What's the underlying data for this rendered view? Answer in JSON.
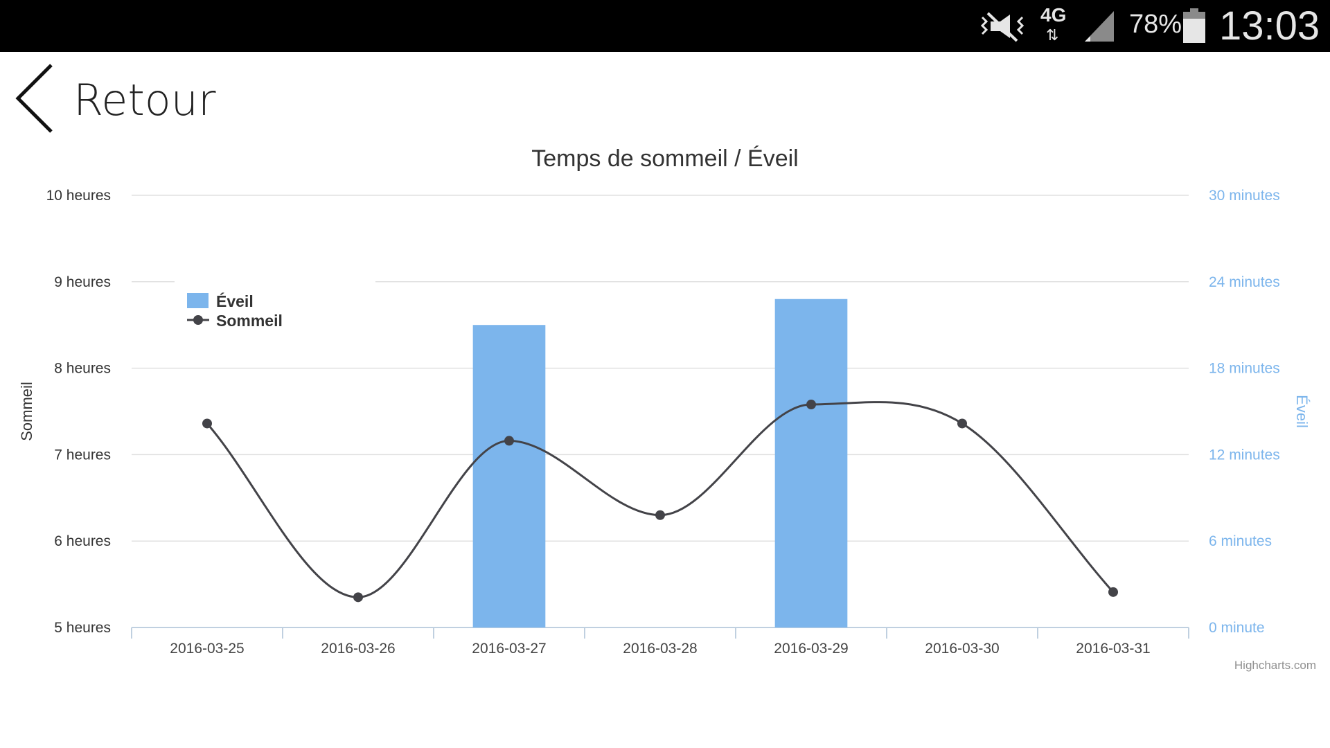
{
  "status_bar": {
    "network": "4G",
    "battery_percent": "78%",
    "clock": "13:03",
    "icons": [
      "mute-vibrate-icon",
      "network-arrows-icon",
      "signal-icon",
      "battery-icon"
    ]
  },
  "nav": {
    "back_label": "Retour",
    "icon": "chevron-left-icon"
  },
  "chart_data": {
    "type": "bar+line",
    "title": "Temps de sommeil / Éveil",
    "categories": [
      "2016-03-25",
      "2016-03-26",
      "2016-03-27",
      "2016-03-28",
      "2016-03-29",
      "2016-03-30",
      "2016-03-31"
    ],
    "left_axis": {
      "title": "Sommeil",
      "ticks": [
        "5 heures",
        "6 heures",
        "7 heures",
        "8 heures",
        "9 heures",
        "10 heures"
      ],
      "range": [
        5,
        10
      ]
    },
    "right_axis": {
      "title": "Éveil",
      "ticks": [
        "0 minute",
        "6 minutes",
        "12 minutes",
        "18 minutes",
        "24 minutes",
        "30 minutes"
      ],
      "range": [
        0,
        30
      ]
    },
    "series": [
      {
        "name": "Éveil",
        "type": "column",
        "axis": "right",
        "color": "#7cb5ec",
        "values": [
          0,
          0,
          21,
          0,
          22.8,
          0,
          0
        ]
      },
      {
        "name": "Sommeil",
        "type": "spline",
        "axis": "left",
        "color": "#434348",
        "values": [
          7.36,
          5.35,
          7.16,
          6.3,
          7.58,
          7.36,
          5.41
        ]
      }
    ],
    "legend_position": "top-left",
    "grid": true,
    "credits": "Highcharts.com"
  }
}
